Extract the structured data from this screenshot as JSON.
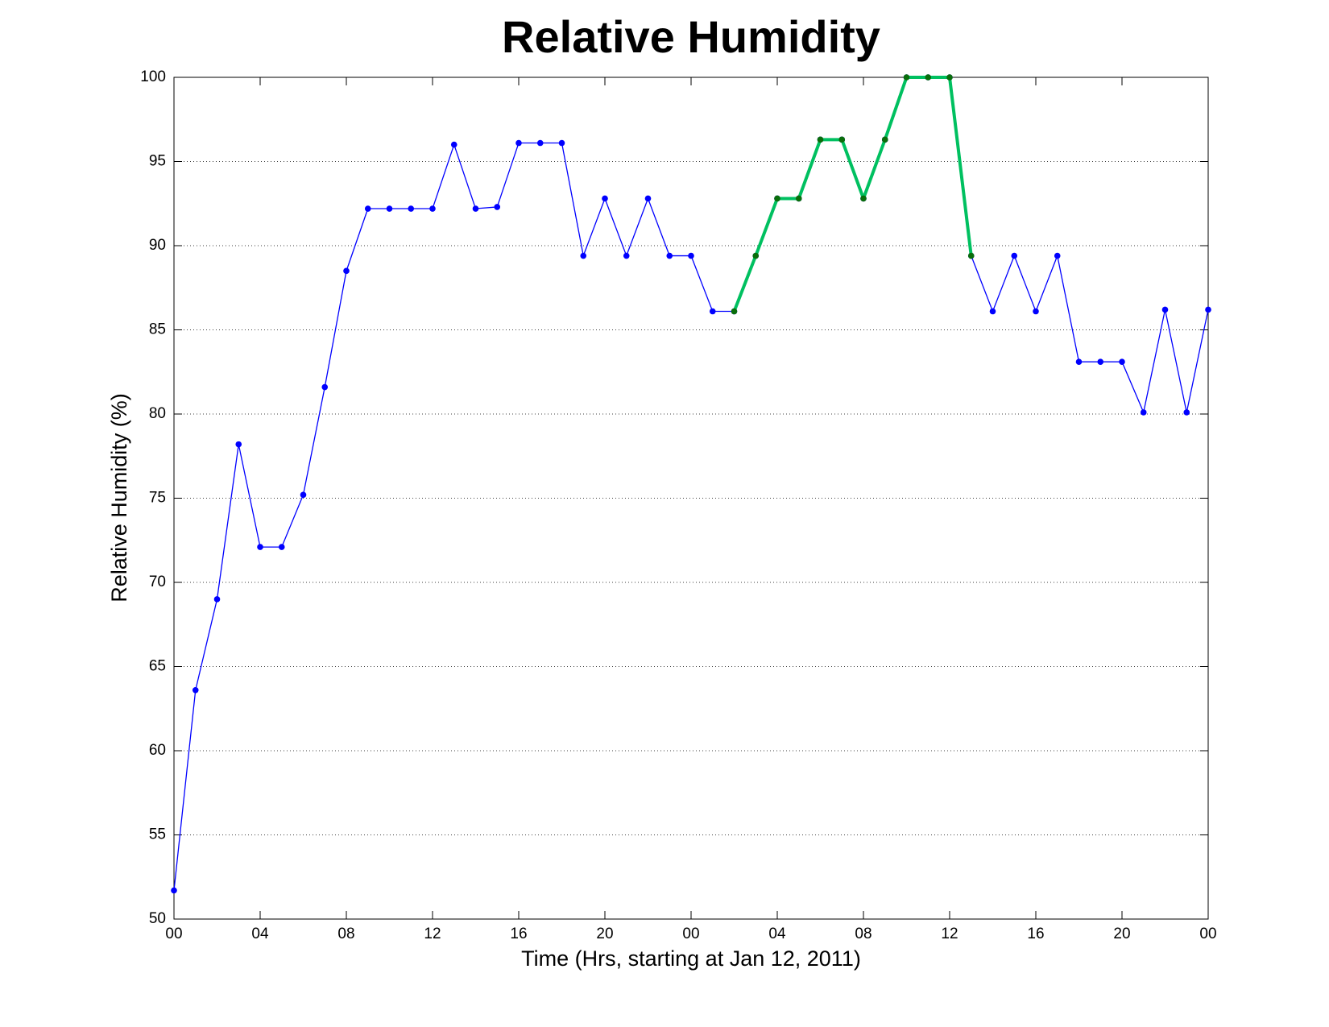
{
  "chart_data": {
    "type": "line",
    "title": "Relative Humidity",
    "xlabel": "Time (Hrs, starting at Jan 12, 2011)",
    "ylabel": "Relative Humidity (%)",
    "x": [
      0,
      1,
      2,
      3,
      4,
      5,
      6,
      7,
      8,
      9,
      10,
      11,
      12,
      13,
      14,
      15,
      16,
      17,
      18,
      19,
      20,
      21,
      22,
      23,
      24,
      25,
      26,
      27,
      28,
      29,
      30,
      31,
      32,
      33,
      34,
      35,
      36,
      37,
      38,
      39,
      40,
      41,
      42,
      43,
      44,
      45,
      46,
      47,
      48
    ],
    "series": [
      {
        "color": "#0000ff",
        "marker_color": "#0000ff",
        "width": 1.3,
        "values": [
          51.7,
          63.6,
          69.0,
          78.2,
          72.1,
          72.1,
          75.2,
          81.6,
          88.5,
          92.2,
          92.2,
          92.2,
          92.2,
          96.0,
          92.2,
          92.3,
          96.1,
          96.1,
          96.1,
          89.4,
          92.8,
          89.4,
          92.8,
          89.4,
          89.4,
          86.1,
          86.1,
          89.4,
          92.8,
          92.8,
          96.3,
          96.3,
          92.8,
          96.3,
          100,
          100,
          100,
          89.4,
          86.1,
          89.4,
          86.1,
          89.4,
          83.1,
          83.1,
          83.1,
          80.1,
          86.2,
          80.1,
          86.2
        ]
      },
      {
        "color": "#00c060",
        "marker_color": "#0a6e0a",
        "width": 4,
        "values": [
          null,
          null,
          null,
          null,
          null,
          null,
          null,
          null,
          null,
          null,
          null,
          null,
          null,
          null,
          null,
          null,
          null,
          null,
          null,
          null,
          null,
          null,
          null,
          null,
          null,
          null,
          86.1,
          89.4,
          92.8,
          92.8,
          96.3,
          96.3,
          92.8,
          96.3,
          100,
          100,
          100,
          89.4,
          null,
          null,
          null,
          null,
          null,
          null,
          null,
          null,
          null,
          null,
          null
        ]
      }
    ],
    "xlim": [
      0,
      48
    ],
    "xticks": [
      {
        "value": 0,
        "label": "00"
      },
      {
        "value": 4,
        "label": "04"
      },
      {
        "value": 8,
        "label": "08"
      },
      12,
      16,
      20,
      {
        "value": 24,
        "label": "00"
      },
      {
        "value": 28,
        "label": "04"
      },
      {
        "value": 32,
        "label": "08"
      },
      {
        "value": 36,
        "label": "12"
      },
      {
        "value": 40,
        "label": "16"
      },
      {
        "value": 44,
        "label": "20"
      },
      {
        "value": 48,
        "label": "00"
      }
    ],
    "ylim": [
      50,
      100
    ],
    "yticks": [
      50,
      55,
      60,
      65,
      70,
      75,
      80,
      85,
      90,
      95,
      100
    ],
    "grid": true
  }
}
